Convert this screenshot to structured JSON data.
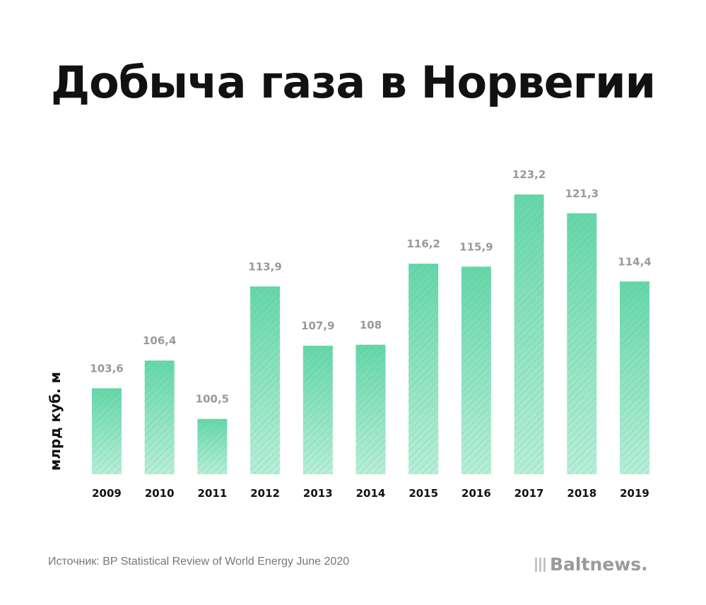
{
  "title": "Добыча газа в Норвегии",
  "source": "Источник: BP Statistical Review of World Energy June 2020",
  "logo": "Baltnews.",
  "colors": {
    "bar_top": "#66d6a9",
    "bar_bottom": "#b8eed8",
    "hatch": "#3fb88a",
    "value_label": "#999999"
  },
  "chart_data": {
    "type": "bar",
    "title": "Добыча газа в Норвегии",
    "ylabel": "млрд куб. м",
    "xlabel": "",
    "categories": [
      "2009",
      "2010",
      "2011",
      "2012",
      "2013",
      "2014",
      "2015",
      "2016",
      "2017",
      "2018",
      "2019"
    ],
    "values": [
      103.6,
      106.4,
      100.5,
      113.9,
      107.9,
      108,
      116.2,
      115.9,
      123.2,
      121.3,
      114.4
    ],
    "value_labels": [
      "103,6",
      "106,4",
      "100,5",
      "113,9",
      "107,9",
      "108",
      "116,2",
      "115,9",
      "123,2",
      "121,3",
      "114,4"
    ],
    "ylim": [
      94.9,
      125
    ],
    "grid": false
  }
}
